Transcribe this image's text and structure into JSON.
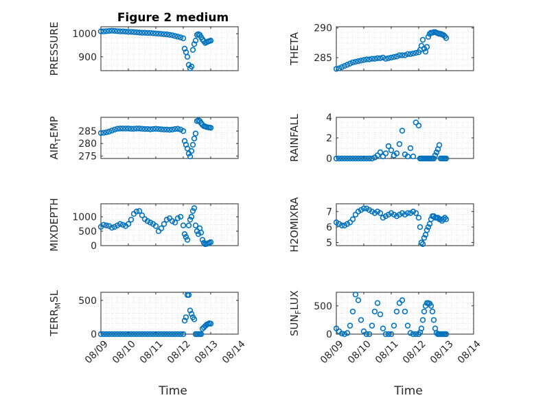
{
  "figure_title": "Figure 2 medium",
  "accent_color": "#0072BD",
  "xlabel": "Time",
  "x_ticks": [
    "08/09",
    "08/10",
    "08/11",
    "08/12",
    "08/13",
    "08/14"
  ],
  "chart_data": [
    {
      "type": "scatter",
      "title": "Figure 2 medium",
      "ylabel": "PRESSURE",
      "xlim": [
        0,
        5
      ],
      "ylim": [
        840,
        1030
      ],
      "y_ticks": [
        "900",
        "1000"
      ],
      "grid": true,
      "x": [
        0.0,
        0.1,
        0.2,
        0.3,
        0.4,
        0.5,
        0.6,
        0.7,
        0.8,
        0.9,
        1.0,
        1.1,
        1.2,
        1.3,
        1.4,
        1.5,
        1.6,
        1.7,
        1.8,
        1.9,
        2.0,
        2.1,
        2.2,
        2.3,
        2.4,
        2.5,
        2.6,
        2.7,
        2.8,
        2.9,
        3.0,
        3.05,
        3.1,
        3.15,
        3.2,
        3.25,
        3.3,
        3.35,
        3.4,
        3.45,
        3.5,
        3.55,
        3.6,
        3.65,
        3.7,
        3.75,
        3.8,
        3.85,
        3.9,
        3.95,
        4.0
      ],
      "values": [
        1010,
        1010,
        1011,
        1012,
        1013,
        1012,
        1011,
        1010,
        1010,
        1009,
        1008,
        1008,
        1007,
        1006,
        1005,
        1004,
        1004,
        1003,
        1003,
        1002,
        1001,
        1000,
        999,
        998,
        997,
        995,
        993,
        990,
        987,
        984,
        980,
        935,
        920,
        900,
        865,
        850,
        858,
        930,
        955,
        970,
        995,
        998,
        995,
        985,
        975,
        968,
        960,
        963,
        966,
        968,
        970
      ]
    },
    {
      "type": "scatter",
      "ylabel": "THETA",
      "xlim": [
        0,
        5
      ],
      "ylim": [
        282.8,
        290.2
      ],
      "y_ticks": [
        "285",
        "290"
      ],
      "grid": true,
      "x": [
        0.0,
        0.1,
        0.2,
        0.3,
        0.4,
        0.5,
        0.6,
        0.7,
        0.8,
        0.9,
        1.0,
        1.1,
        1.2,
        1.3,
        1.4,
        1.5,
        1.6,
        1.7,
        1.8,
        1.9,
        2.0,
        2.1,
        2.2,
        2.3,
        2.4,
        2.5,
        2.6,
        2.7,
        2.8,
        2.9,
        3.0,
        3.05,
        3.1,
        3.15,
        3.2,
        3.25,
        3.3,
        3.35,
        3.4,
        3.45,
        3.5,
        3.55,
        3.6,
        3.65,
        3.7,
        3.75,
        3.8,
        3.85,
        3.9,
        3.95,
        4.0
      ],
      "values": [
        283.1,
        283.2,
        283.4,
        283.6,
        283.8,
        284.0,
        284.2,
        284.3,
        284.4,
        284.5,
        284.6,
        284.7,
        284.7,
        284.8,
        284.8,
        284.9,
        284.9,
        285.0,
        284.8,
        284.9,
        285.0,
        285.1,
        285.2,
        285.4,
        285.4,
        285.4,
        285.6,
        285.6,
        285.7,
        285.8,
        285.9,
        286.3,
        287.0,
        288.0,
        286.5,
        286.0,
        286.8,
        288.5,
        289.0,
        289.2,
        289.2,
        289.3,
        289.3,
        289.2,
        289.1,
        289.0,
        289.0,
        288.9,
        288.8,
        288.6,
        288.3
      ]
    },
    {
      "type": "scatter",
      "ylabel": "AIR_TEMP",
      "xlim": [
        0,
        5
      ],
      "ylim": [
        274,
        290.5
      ],
      "y_ticks": [
        "275",
        "280",
        "285"
      ],
      "grid": true,
      "x": [
        0.0,
        0.1,
        0.2,
        0.3,
        0.4,
        0.5,
        0.6,
        0.7,
        0.8,
        0.9,
        1.0,
        1.1,
        1.2,
        1.3,
        1.4,
        1.5,
        1.6,
        1.7,
        1.8,
        1.9,
        2.0,
        2.1,
        2.2,
        2.3,
        2.4,
        2.5,
        2.6,
        2.7,
        2.8,
        2.9,
        3.0,
        3.05,
        3.1,
        3.15,
        3.2,
        3.25,
        3.3,
        3.35,
        3.4,
        3.45,
        3.5,
        3.55,
        3.6,
        3.65,
        3.7,
        3.75,
        3.8,
        3.85,
        3.9,
        3.95,
        4.0
      ],
      "values": [
        284.2,
        284.3,
        284.5,
        284.8,
        285.2,
        285.6,
        285.9,
        286.0,
        286.0,
        286.0,
        286.0,
        285.9,
        285.9,
        286.0,
        286.0,
        285.9,
        285.8,
        285.8,
        285.7,
        285.8,
        285.9,
        285.8,
        285.7,
        285.6,
        285.6,
        285.5,
        285.6,
        285.8,
        285.9,
        285.6,
        285.0,
        281.0,
        279.5,
        278.0,
        276.0,
        274.8,
        277.0,
        279.5,
        282.0,
        284.0,
        289.0,
        289.3,
        289.0,
        288.2,
        287.5,
        287.0,
        286.8,
        286.6,
        286.5,
        286.4,
        286.3
      ]
    },
    {
      "type": "scatter",
      "ylabel": "RAINFALL",
      "xlim": [
        0,
        5
      ],
      "ylim": [
        0,
        4
      ],
      "y_ticks": [
        "0",
        "2",
        "4"
      ],
      "grid": true,
      "x": [
        0.0,
        0.1,
        0.2,
        0.3,
        0.4,
        0.5,
        0.6,
        0.7,
        0.8,
        0.9,
        1.0,
        1.1,
        1.2,
        1.3,
        1.4,
        1.5,
        1.6,
        1.7,
        1.8,
        1.9,
        2.0,
        2.1,
        2.2,
        2.3,
        2.4,
        2.5,
        2.6,
        2.7,
        2.8,
        2.9,
        3.0,
        3.05,
        3.1,
        3.15,
        3.2,
        3.25,
        3.3,
        3.35,
        3.4,
        3.45,
        3.5,
        3.55,
        3.6,
        3.65,
        3.7,
        3.75,
        3.8,
        3.85,
        3.9,
        3.95,
        4.0
      ],
      "values": [
        0,
        0,
        0,
        0,
        0,
        0,
        0,
        0,
        0,
        0,
        0,
        0,
        0,
        0,
        0.1,
        0.3,
        0.6,
        0.2,
        0.5,
        1.2,
        0.8,
        0.3,
        0.5,
        1.4,
        2.7,
        0.4,
        0.2,
        1.0,
        0.2,
        3.5,
        3.2,
        0,
        0,
        0,
        0,
        0,
        0,
        0,
        0,
        0,
        0,
        0,
        0.3,
        0.6,
        0.9,
        1.3,
        0,
        0,
        0,
        0,
        0
      ]
    },
    {
      "type": "scatter",
      "ylabel": "MIXDEPTH",
      "xlim": [
        0,
        5
      ],
      "ylim": [
        0,
        1450
      ],
      "y_ticks": [
        "0",
        "500",
        "1000"
      ],
      "grid": true,
      "x": [
        0.0,
        0.1,
        0.2,
        0.3,
        0.4,
        0.5,
        0.6,
        0.7,
        0.8,
        0.9,
        1.0,
        1.1,
        1.2,
        1.3,
        1.4,
        1.5,
        1.6,
        1.7,
        1.8,
        1.9,
        2.0,
        2.1,
        2.2,
        2.3,
        2.4,
        2.5,
        2.6,
        2.7,
        2.8,
        2.9,
        3.0,
        3.05,
        3.1,
        3.15,
        3.2,
        3.25,
        3.3,
        3.35,
        3.4,
        3.45,
        3.5,
        3.55,
        3.6,
        3.65,
        3.7,
        3.75,
        3.8,
        3.85,
        3.9,
        3.95,
        4.0
      ],
      "values": [
        650,
        720,
        700,
        680,
        620,
        650,
        700,
        750,
        720,
        680,
        750,
        900,
        1100,
        1180,
        1200,
        1050,
        920,
        850,
        800,
        750,
        680,
        500,
        600,
        750,
        900,
        950,
        850,
        800,
        950,
        1000,
        700,
        400,
        300,
        200,
        700,
        900,
        1000,
        1200,
        1300,
        700,
        500,
        400,
        600,
        450,
        200,
        100,
        50,
        60,
        80,
        100,
        120
      ]
    },
    {
      "type": "scatter",
      "ylabel": "H2OMIXRA",
      "xlim": [
        0,
        5
      ],
      "ylim": [
        4.8,
        7.5
      ],
      "y_ticks": [
        "5",
        "6",
        "7"
      ],
      "grid": true,
      "x": [
        0.0,
        0.1,
        0.2,
        0.3,
        0.4,
        0.5,
        0.6,
        0.7,
        0.8,
        0.9,
        1.0,
        1.1,
        1.2,
        1.3,
        1.4,
        1.5,
        1.6,
        1.7,
        1.8,
        1.9,
        2.0,
        2.1,
        2.2,
        2.3,
        2.4,
        2.5,
        2.6,
        2.7,
        2.8,
        2.9,
        3.0,
        3.05,
        3.1,
        3.15,
        3.2,
        3.25,
        3.3,
        3.35,
        3.4,
        3.45,
        3.5,
        3.55,
        3.6,
        3.65,
        3.7,
        3.75,
        3.8,
        3.85,
        3.9,
        3.95,
        4.0
      ],
      "values": [
        6.3,
        6.2,
        6.1,
        6.1,
        6.2,
        6.3,
        6.5,
        6.8,
        7.0,
        7.1,
        7.2,
        7.2,
        7.1,
        7.0,
        6.9,
        7.0,
        6.9,
        6.6,
        6.7,
        6.8,
        6.9,
        6.8,
        6.7,
        6.8,
        6.9,
        6.8,
        6.9,
        6.9,
        7.0,
        6.9,
        6.6,
        6.0,
        5.0,
        4.9,
        5.3,
        5.5,
        5.8,
        6.0,
        6.2,
        6.5,
        6.7,
        6.7,
        6.6,
        6.6,
        6.6,
        6.5,
        6.5,
        6.4,
        6.5,
        6.6,
        6.5
      ]
    },
    {
      "type": "scatter",
      "ylabel": "TERR_MSL",
      "xlim": [
        0,
        5
      ],
      "ylim": [
        0,
        620
      ],
      "y_ticks": [
        "0",
        "500"
      ],
      "grid": true,
      "x": [
        0.0,
        0.1,
        0.2,
        0.3,
        0.4,
        0.5,
        0.6,
        0.7,
        0.8,
        0.9,
        1.0,
        1.1,
        1.2,
        1.3,
        1.4,
        1.5,
        1.6,
        1.7,
        1.8,
        1.9,
        2.0,
        2.1,
        2.2,
        2.3,
        2.4,
        2.5,
        2.6,
        2.7,
        2.8,
        2.9,
        3.0,
        3.05,
        3.1,
        3.15,
        3.2,
        3.25,
        3.3,
        3.35,
        3.4,
        3.45,
        3.5,
        3.55,
        3.6,
        3.65,
        3.7,
        3.75,
        3.8,
        3.85,
        3.9,
        3.95,
        4.0
      ],
      "values": [
        0,
        0,
        0,
        0,
        0,
        0,
        0,
        0,
        0,
        0,
        0,
        0,
        0,
        0,
        0,
        0,
        0,
        0,
        0,
        0,
        0,
        0,
        0,
        0,
        0,
        0,
        0,
        0,
        0,
        0,
        0,
        200,
        250,
        580,
        580,
        350,
        300,
        250,
        220,
        0,
        0,
        0,
        0,
        0,
        80,
        100,
        120,
        140,
        150,
        160,
        155
      ]
    },
    {
      "type": "scatter",
      "ylabel": "SUN_FLUX",
      "xlim": [
        0,
        5
      ],
      "ylim": [
        0,
        740
      ],
      "y_ticks": [
        "0",
        "500"
      ],
      "grid": true,
      "x": [
        0.0,
        0.1,
        0.2,
        0.3,
        0.4,
        0.5,
        0.6,
        0.7,
        0.8,
        0.9,
        1.0,
        1.1,
        1.2,
        1.3,
        1.4,
        1.5,
        1.6,
        1.7,
        1.8,
        1.9,
        2.0,
        2.1,
        2.2,
        2.3,
        2.4,
        2.5,
        2.6,
        2.7,
        2.8,
        2.9,
        3.0,
        3.05,
        3.1,
        3.15,
        3.2,
        3.25,
        3.3,
        3.35,
        3.4,
        3.45,
        3.5,
        3.55,
        3.6,
        3.65,
        3.7,
        3.75,
        3.8,
        3.85,
        3.9,
        3.95,
        4.0
      ],
      "values": [
        100,
        50,
        10,
        0,
        20,
        150,
        400,
        700,
        600,
        250,
        50,
        0,
        0,
        150,
        400,
        550,
        350,
        100,
        0,
        0,
        0,
        150,
        400,
        550,
        600,
        400,
        150,
        20,
        0,
        0,
        0,
        30,
        100,
        250,
        400,
        500,
        550,
        550,
        540,
        500,
        400,
        250,
        100,
        20,
        0,
        0,
        0,
        0,
        0,
        0,
        0
      ]
    }
  ]
}
